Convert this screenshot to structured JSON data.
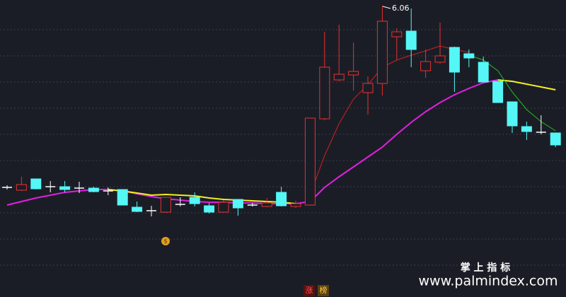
{
  "chart_data": {
    "type": "candlestick",
    "annotation": "6.06",
    "watermark_cn": "掌 上 指 标",
    "watermark_url": "www.palmindex.com",
    "badges": [
      "涨",
      "榜"
    ],
    "categories": [
      null,
      null,
      null,
      null,
      null,
      null,
      null,
      null,
      null,
      null,
      null,
      null,
      null,
      null,
      null,
      null,
      null,
      null,
      null,
      null,
      null,
      null,
      null,
      null,
      null,
      null,
      null,
      null,
      null,
      null,
      null,
      null,
      null,
      null,
      null,
      null,
      null,
      null,
      null
    ],
    "up_color": "#e8312e",
    "down_color": "#54f6f6",
    "flat_color": "#ffffff",
    "ylim": [
      1.94,
      6.14
    ],
    "open": [
      3.49,
      3.45,
      3.61,
      3.5,
      3.5,
      3.48,
      3.48,
      3.44,
      3.46,
      3.21,
      3.16,
      3.14,
      3.25,
      3.35,
      3.23,
      3.14,
      3.32,
      3.24,
      3.22,
      3.42,
      3.22,
      3.24,
      4.46,
      5.01,
      5.08,
      4.83,
      4.96,
      5.62,
      5.7,
      5.14,
      5.26,
      5.47,
      5.38,
      5.26,
      4.99,
      4.7,
      4.35,
      4.27,
      4.26
    ],
    "high": [
      3.52,
      3.64,
      3.61,
      3.58,
      3.58,
      3.57,
      3.5,
      3.49,
      3.46,
      3.29,
      3.23,
      3.35,
      3.35,
      3.42,
      3.27,
      3.31,
      3.32,
      3.27,
      3.34,
      3.5,
      3.3,
      4.47,
      5.69,
      5.79,
      5.54,
      5.06,
      6.06,
      5.74,
      6.02,
      5.44,
      5.82,
      5.48,
      5.44,
      5.34,
      4.99,
      4.7,
      4.42,
      4.51,
      4.26
    ],
    "low": [
      3.46,
      3.44,
      3.46,
      3.42,
      3.42,
      3.41,
      3.42,
      3.38,
      3.24,
      3.14,
      3.08,
      3.13,
      3.22,
      3.22,
      3.12,
      3.14,
      3.09,
      3.22,
      3.21,
      3.22,
      3.2,
      3.23,
      4.44,
      4.99,
      4.86,
      4.52,
      4.79,
      5.29,
      5.19,
      5.04,
      5.24,
      4.84,
      5.19,
      4.98,
      4.69,
      4.26,
      4.16,
      4.24,
      4.06
    ],
    "close": [
      3.49,
      3.53,
      3.47,
      3.5,
      3.46,
      3.48,
      3.43,
      3.44,
      3.24,
      3.15,
      3.16,
      3.35,
      3.25,
      3.26,
      3.14,
      3.28,
      3.2,
      3.24,
      3.27,
      3.23,
      3.26,
      4.47,
      5.19,
      5.09,
      5.13,
      4.96,
      5.84,
      5.69,
      5.44,
      5.27,
      5.35,
      5.12,
      5.32,
      4.98,
      4.69,
      4.36,
      4.28,
      4.27,
      4.09
    ],
    "series": [
      {
        "color": "#e020e0",
        "values": [
          3.24,
          3.29,
          3.34,
          3.38,
          3.42,
          3.44,
          3.46,
          3.46,
          3.44,
          3.4,
          3.36,
          3.33,
          3.31,
          3.29,
          3.28,
          3.28,
          3.27,
          3.27,
          3.26,
          3.26,
          3.26,
          3.29,
          3.49,
          3.64,
          3.78,
          3.92,
          4.06,
          4.24,
          4.41,
          4.56,
          4.69,
          4.8,
          4.89,
          4.97,
          5.01,
          null,
          null,
          null,
          null
        ]
      },
      {
        "color": "#f0f020",
        "values": [
          null,
          null,
          null,
          null,
          null,
          null,
          null,
          3.46,
          3.44,
          3.41,
          3.38,
          3.39,
          3.38,
          3.37,
          3.34,
          3.32,
          3.31,
          3.3,
          3.29,
          3.28,
          3.26,
          null,
          null,
          null,
          null,
          null,
          null,
          null,
          null,
          null,
          null,
          null,
          null,
          null,
          5.01,
          4.99,
          4.95,
          4.91,
          4.87
        ]
      },
      {
        "color": "#20c020",
        "values": [
          null,
          null,
          null,
          null,
          null,
          null,
          null,
          null,
          null,
          null,
          null,
          null,
          null,
          null,
          null,
          null,
          null,
          null,
          null,
          null,
          null,
          null,
          null,
          null,
          null,
          null,
          null,
          null,
          null,
          null,
          null,
          null,
          5.36,
          5.29,
          5.14,
          4.84,
          4.59,
          4.42,
          4.29
        ]
      },
      {
        "color": "#d02020",
        "values": [
          null,
          null,
          null,
          null,
          null,
          null,
          null,
          null,
          null,
          null,
          null,
          null,
          null,
          null,
          null,
          null,
          null,
          null,
          null,
          null,
          null,
          3.39,
          3.94,
          4.39,
          4.74,
          4.94,
          5.19,
          5.29,
          5.36,
          5.42,
          5.49,
          5.44,
          5.4,
          null,
          null,
          null,
          null,
          null,
          null
        ]
      }
    ]
  }
}
